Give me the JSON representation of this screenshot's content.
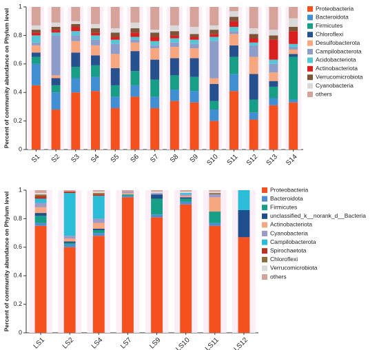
{
  "chart_data": [
    {
      "type": "bar",
      "stacked": true,
      "ylabel": "Percent of community abundance on Phylum level",
      "categories": [
        "S1",
        "S2",
        "S3",
        "S4",
        "S5",
        "S6",
        "S7",
        "S8",
        "S9",
        "S10",
        "S11",
        "S12",
        "S13",
        "S14"
      ],
      "ylim": [
        0,
        1
      ],
      "yticks": [
        0,
        0.2,
        0.4,
        0.6,
        0.8,
        1
      ],
      "series": [
        {
          "name": "Proteobacteria",
          "color": "#f4511e",
          "values": [
            0.45,
            0.28,
            0.4,
            0.41,
            0.29,
            0.37,
            0.29,
            0.34,
            0.33,
            0.2,
            0.41,
            0.21,
            0.31,
            0.33
          ]
        },
        {
          "name": "Bacteroidota",
          "color": "#3f8fd2",
          "values": [
            0.15,
            0.12,
            0.1,
            0.1,
            0.08,
            0.08,
            0.08,
            0.08,
            0.08,
            0.08,
            0.12,
            0.05,
            0.05,
            0.02
          ]
        },
        {
          "name": "Firmicutes",
          "color": "#179e86",
          "values": [
            0.05,
            0.05,
            0.08,
            0.08,
            0.08,
            0.1,
            0.12,
            0.1,
            0.1,
            0.06,
            0.12,
            0.09,
            0.08,
            0.3
          ]
        },
        {
          "name": "Chloroflexi",
          "color": "#27508f",
          "values": [
            0.03,
            0.05,
            0.1,
            0.07,
            0.12,
            0.14,
            0.14,
            0.12,
            0.13,
            0.12,
            0.08,
            0.18,
            0.04,
            0.02
          ]
        },
        {
          "name": "Desulfobacterota",
          "color": "#f6a77f",
          "values": [
            0.05,
            0.02,
            0.08,
            0.07,
            0.1,
            0.06,
            0.08,
            0.08,
            0.07,
            0.04,
            0.08,
            0.12,
            0.06,
            0.03
          ]
        },
        {
          "name": "Campilobacterota",
          "color": "#8b9dc8",
          "values": [
            0.02,
            0.28,
            0.04,
            0.04,
            0.07,
            0.02,
            0.02,
            0.03,
            0.03,
            0.26,
            0.02,
            0.08,
            0.06,
            0.02
          ]
        },
        {
          "name": "Acidobacteriota",
          "color": "#56c6d6",
          "values": [
            0.05,
            0.02,
            0.03,
            0.03,
            0.03,
            0.02,
            0.03,
            0.03,
            0.03,
            0.03,
            0.03,
            0.02,
            0.03,
            0.02
          ]
        },
        {
          "name": "Actinobacteriota",
          "color": "#d9201f",
          "values": [
            0.02,
            0.02,
            0.03,
            0.02,
            0.02,
            0.03,
            0.03,
            0.02,
            0.02,
            0.02,
            0.04,
            0.03,
            0.14,
            0.09
          ]
        },
        {
          "name": "Verrucomicrobiota",
          "color": "#7d5438",
          "values": [
            0.02,
            0.02,
            0.02,
            0.03,
            0.03,
            0.03,
            0.03,
            0.03,
            0.02,
            0.03,
            0.03,
            0.03,
            0.03,
            0.03
          ]
        },
        {
          "name": "Cyanobacteria",
          "color": "#d9d9d9",
          "values": [
            0.03,
            0.03,
            0.02,
            0.03,
            0.03,
            0.04,
            0.02,
            0.04,
            0.05,
            0.03,
            0.04,
            0.04,
            0.04,
            0.06
          ]
        },
        {
          "name": "others",
          "color": "#d6a39b",
          "values": [
            0.13,
            0.11,
            0.1,
            0.12,
            0.15,
            0.11,
            0.16,
            0.13,
            0.14,
            0.13,
            0.03,
            0.15,
            0.16,
            0.08
          ]
        }
      ]
    },
    {
      "type": "bar",
      "stacked": true,
      "ylabel": "Percent of community abundance on Phylum level",
      "categories": [
        "LS1",
        "LS2",
        "LS4",
        "LS7",
        "LS9",
        "LS10",
        "LS11",
        "LS12"
      ],
      "ylim": [
        0,
        1
      ],
      "yticks": [
        0,
        0.2,
        0.4,
        0.6,
        0.8,
        1
      ],
      "series": [
        {
          "name": "Proteobacteria",
          "color": "#f4511e",
          "values": [
            0.75,
            0.6,
            0.68,
            0.95,
            0.81,
            0.9,
            0.75,
            0.67
          ]
        },
        {
          "name": "Bacteroidota",
          "color": "#4c8fd0",
          "values": [
            0.02,
            0.02,
            0.02,
            0.01,
            0.02,
            0.02,
            0.02,
            0
          ]
        },
        {
          "name": "Firmicutes",
          "color": "#179e86",
          "values": [
            0.05,
            0.01,
            0.02,
            0.01,
            0.11,
            0.02,
            0.08,
            0
          ]
        },
        {
          "name": "unclassified_k__norank_d__Bacteria",
          "color": "#1f4e8c",
          "values": [
            0.02,
            0.01,
            0.01,
            0,
            0.03,
            0.01,
            0,
            0.19
          ]
        },
        {
          "name": "Actinobacteriota",
          "color": "#f6a77f",
          "values": [
            0.04,
            0.02,
            0.04,
            0.01,
            0,
            0.01,
            0.1,
            0
          ]
        },
        {
          "name": "Cyanobacteria",
          "color": "#9e9ac8",
          "values": [
            0.03,
            0.02,
            0.03,
            0.01,
            0.01,
            0.01,
            0.02,
            0
          ]
        },
        {
          "name": "Campilobacterota",
          "color": "#2bbcd8",
          "values": [
            0.03,
            0.3,
            0.16,
            0,
            0,
            0.01,
            0,
            0.14
          ]
        },
        {
          "name": "Spirochaetota",
          "color": "#b5341f",
          "values": [
            0.02,
            0.01,
            0.01,
            0,
            0,
            0,
            0,
            0
          ]
        },
        {
          "name": "Chloroflexi",
          "color": "#8c6d3c",
          "values": [
            0.01,
            0,
            0.01,
            0,
            0,
            0,
            0.01,
            0
          ]
        },
        {
          "name": "Verrucomicrobiota",
          "color": "#dcdcdc",
          "values": [
            0.01,
            0,
            0.01,
            0,
            0.01,
            0.01,
            0.01,
            0
          ]
        },
        {
          "name": "others",
          "color": "#d6a39b",
          "values": [
            0.02,
            0.01,
            0.01,
            0.01,
            0.01,
            0.01,
            0.01,
            0
          ]
        }
      ]
    }
  ]
}
